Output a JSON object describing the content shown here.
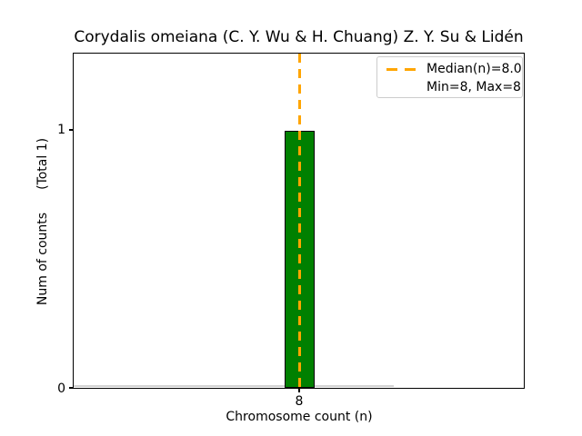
{
  "chart_data": {
    "type": "bar",
    "title": "Corydalis omeiana (C. Y. Wu & H. Chuang) Z. Y. Su & Lidén",
    "xlabel": "Chromosome count (n)",
    "ylabel": "Num of counts",
    "ylabel_note": "(Total 1)",
    "categories": [
      "8"
    ],
    "values": [
      1
    ],
    "total_counts": 1,
    "xticks": [
      "8"
    ],
    "yticks": {
      "zero": "0",
      "one": "1"
    },
    "ylim": [
      0,
      1.3
    ],
    "grid": false,
    "median": {
      "value": 8.0,
      "line_color": "#ffa500",
      "line_style": "dashed"
    },
    "min": 8,
    "max": 8,
    "bar_color": "#008000",
    "bar_edge_color": "#000000",
    "zero_baseline_color": "#d3d3d3",
    "legend": {
      "position": "upper right",
      "entries": [
        {
          "label": "Median(n)=8.0",
          "handle": "orange-dashed-line"
        },
        {
          "label": "Min=8, Max=8",
          "handle": "none"
        }
      ]
    }
  }
}
